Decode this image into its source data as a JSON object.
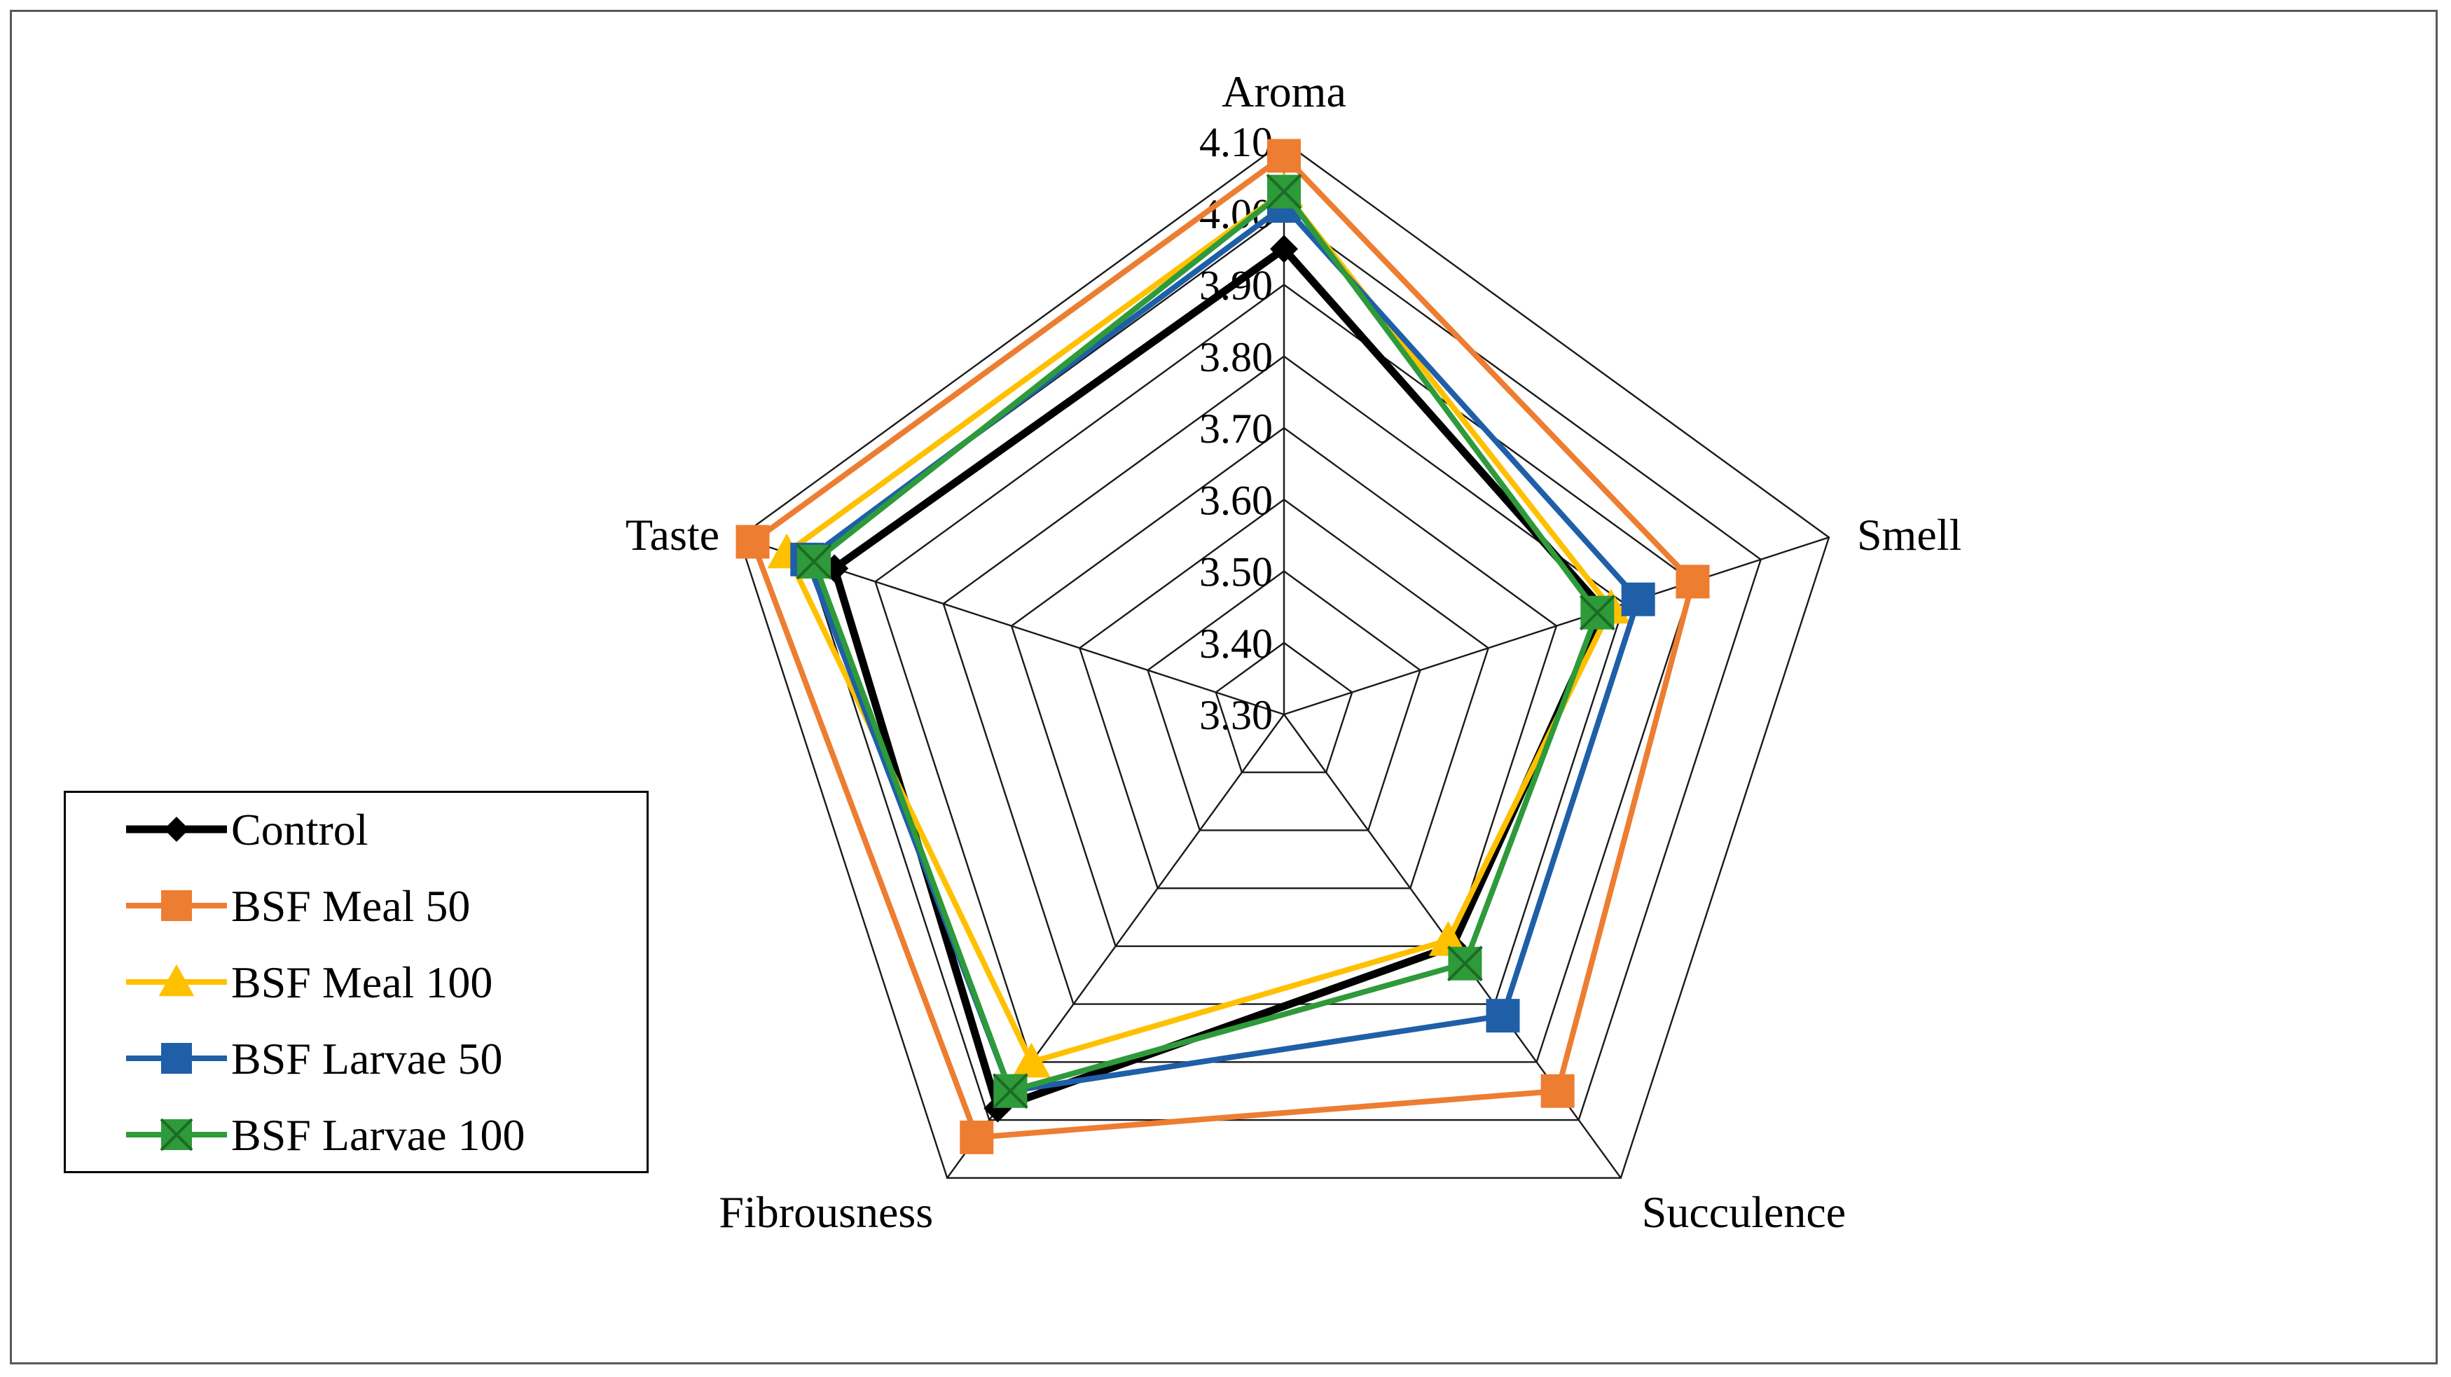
{
  "chart_data": {
    "type": "radar",
    "title": "",
    "categories": [
      "Aroma",
      "Smell",
      "Succulence",
      "Fibrousness",
      "Taste"
    ],
    "rlim": [
      3.3,
      4.1
    ],
    "ticks": [
      "3.30",
      "3.40",
      "3.50",
      "3.60",
      "3.70",
      "3.80",
      "3.90",
      "4.00",
      "4.10"
    ],
    "grid": true,
    "legend_position": "bottom-left",
    "series": [
      {
        "name": "Control",
        "color": "#000000",
        "marker": "diamond",
        "values": [
          3.95,
          3.77,
          3.7,
          3.98,
          3.96
        ]
      },
      {
        "name": "BSF Meal 50",
        "color": "#ED7D31",
        "marker": "square",
        "values": [
          4.08,
          3.9,
          3.95,
          4.03,
          4.08
        ]
      },
      {
        "name": "BSF Meal 100",
        "color": "#FFC000",
        "marker": "triangle",
        "values": [
          4.03,
          3.78,
          3.69,
          3.9,
          4.03
        ]
      },
      {
        "name": "BSF Larvae 50",
        "color": "#1F5FA8",
        "marker": "square",
        "values": [
          4.01,
          3.82,
          3.82,
          3.95,
          4.0
        ]
      },
      {
        "name": "BSF Larvae 100",
        "color": "#2E9A3A",
        "marker": "square-x",
        "values": [
          4.03,
          3.76,
          3.73,
          3.95,
          3.99
        ]
      }
    ]
  }
}
